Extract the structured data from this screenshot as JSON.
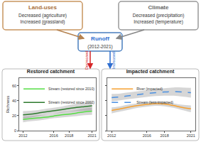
{
  "diagram": {
    "land_uses": {
      "title": "Land-uses",
      "lines": [
        "Decreased (agriculture)",
        "Increased (grassland)"
      ]
    },
    "climate": {
      "title": "Climate",
      "lines": [
        "Decreased (precipitation)",
        "Increased (temperature)"
      ]
    },
    "runoff": {
      "title": "Runoff",
      "subtitle": "(2012-2021)"
    },
    "effects": {
      "restored": "Decreased",
      "impacted": "Increased"
    }
  },
  "chart_data": [
    {
      "type": "line",
      "title": "Restored catchment",
      "y_label": "Richness",
      "x": [
        2012,
        2013,
        2014,
        2015,
        2016,
        2017,
        2018,
        2019,
        2020,
        2021
      ],
      "xlim": [
        2011.5,
        2021.5
      ],
      "xticks": [
        2012,
        2016,
        2018,
        2021
      ],
      "ylim": [
        0,
        70
      ],
      "yticks": [
        0,
        20,
        40,
        60
      ],
      "legend": "upper left",
      "series": [
        {
          "name": "Stream (restored since 2002)",
          "color": "#2d7a2d",
          "line_style": "solid",
          "values": [
            21,
            22,
            23.5,
            25,
            26.5,
            28,
            29.5,
            31,
            32,
            33
          ],
          "lower": [
            16,
            17.5,
            19.5,
            21,
            22.5,
            24,
            25,
            26,
            26.5,
            27
          ],
          "upper": [
            26,
            26.5,
            27.5,
            29,
            30.5,
            32,
            34,
            36,
            37.5,
            39
          ]
        },
        {
          "name": "Stream (restored since 2010)",
          "color": "#55dd44",
          "line_style": "solid",
          "values": [
            15,
            16,
            17,
            18,
            19.5,
            21,
            22,
            23.5,
            25,
            26
          ],
          "lower": [
            11,
            12.5,
            13.5,
            15,
            16.5,
            17.5,
            18.5,
            19.5,
            20.5,
            21
          ],
          "upper": [
            19,
            19.5,
            20.5,
            21,
            22.5,
            24.5,
            25.5,
            27.5,
            29.5,
            31
          ]
        }
      ]
    },
    {
      "type": "line",
      "title": "Impacted catchment",
      "tick_labels": "x",
      "x": [
        2012,
        2013,
        2014,
        2015,
        2016,
        2017,
        2018,
        2019,
        2020,
        2021
      ],
      "xlim": [
        2011.5,
        2021.5
      ],
      "xticks": [
        2012,
        2016,
        2018,
        2021
      ],
      "ylim": [
        0,
        70
      ],
      "yticks": [
        0,
        20,
        40,
        60
      ],
      "legend": "upper left",
      "series": [
        {
          "name": "Stream (less-impacted)",
          "color": "#4a90e2",
          "line_style": "dashed",
          "values": [
            44,
            45,
            46.5,
            48,
            49.5,
            50.5,
            51.5,
            52,
            51.5,
            50.5
          ],
          "lower": [
            39,
            40.5,
            42,
            43.5,
            45,
            46,
            46.5,
            46.5,
            45.5,
            44
          ],
          "upper": [
            49,
            49.5,
            51,
            52.5,
            54,
            55,
            56.5,
            57.5,
            57.5,
            57
          ]
        },
        {
          "name": "River (impacted)",
          "color": "#f5a030",
          "line_style": "solid",
          "values": [
            27,
            29,
            31.5,
            33.5,
            35,
            36,
            35.5,
            33.5,
            31,
            29
          ],
          "lower": [
            23,
            25.5,
            28,
            30.5,
            32,
            33,
            32.5,
            30.5,
            27.5,
            24.5
          ],
          "upper": [
            31,
            32.5,
            35,
            36.5,
            38,
            39,
            38.5,
            36.5,
            34.5,
            33.5
          ]
        }
      ]
    }
  ]
}
